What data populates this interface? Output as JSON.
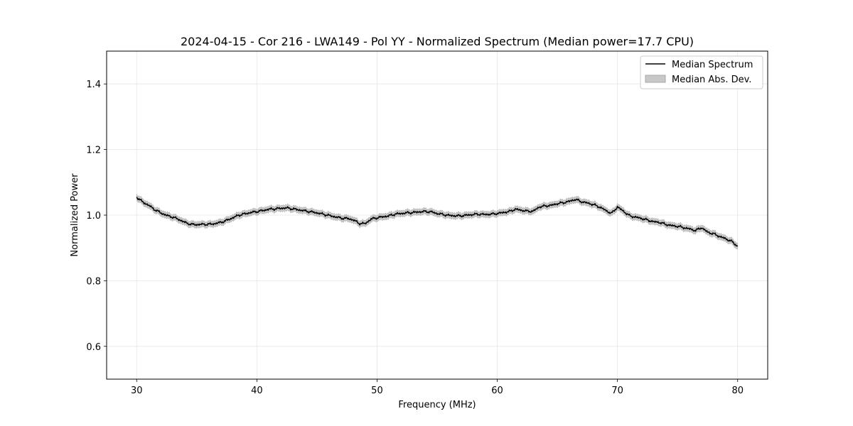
{
  "chart_data": {
    "type": "line",
    "title": "2024-04-15 - Cor 216 - LWA149 - Pol YY - Normalized Spectrum (Median power=17.7 CPU)",
    "xlabel": "Frequency (MHz)",
    "ylabel": "Normalized Power",
    "xlim": [
      27.5,
      82.5
    ],
    "ylim": [
      0.5,
      1.5
    ],
    "xticks": [
      30,
      40,
      50,
      60,
      70,
      80
    ],
    "yticks": [
      0.6,
      0.8,
      1.0,
      1.2,
      1.4
    ],
    "xtick_labels": [
      "30",
      "40",
      "50",
      "60",
      "70",
      "80"
    ],
    "ytick_labels": [
      "0.6",
      "0.8",
      "1.0",
      "1.2",
      "1.4"
    ],
    "grid": true,
    "legend_position": "top-right",
    "legend": [
      "Median Spectrum",
      "Median Abs. Dev."
    ],
    "series": [
      {
        "name": "Median Spectrum",
        "color": "#000000",
        "x": [
          30,
          30.5,
          31,
          31.5,
          32,
          32.5,
          33,
          33.5,
          34,
          34.5,
          35,
          35.5,
          36,
          36.5,
          37,
          37.5,
          38,
          38.5,
          39,
          39.5,
          40,
          40.5,
          41,
          41.5,
          42,
          42.5,
          43,
          43.5,
          44,
          44.5,
          45,
          45.5,
          46,
          46.5,
          47,
          47.5,
          48,
          48.5,
          49,
          49.5,
          50,
          50.5,
          51,
          51.5,
          52,
          52.5,
          53,
          53.5,
          54,
          54.5,
          55,
          55.5,
          56,
          56.5,
          57,
          57.5,
          58,
          58.5,
          59,
          59.5,
          60,
          60.5,
          61,
          61.5,
          62,
          62.5,
          63,
          63.5,
          64,
          64.5,
          65,
          65.5,
          66,
          66.5,
          67,
          67.5,
          68,
          68.5,
          69,
          69.5,
          70,
          70.5,
          71,
          71.5,
          72,
          72.5,
          73,
          73.5,
          74,
          74.5,
          75,
          75.5,
          76,
          76.5,
          77,
          77.5,
          78,
          78.5,
          79,
          79.5,
          80
        ],
        "y": [
          1.055,
          1.04,
          1.03,
          1.017,
          1.007,
          0.999,
          0.994,
          0.987,
          0.978,
          0.972,
          0.971,
          0.972,
          0.972,
          0.974,
          0.978,
          0.984,
          0.992,
          1.0,
          1.004,
          1.008,
          1.011,
          1.014,
          1.018,
          1.019,
          1.021,
          1.022,
          1.019,
          1.016,
          1.013,
          1.01,
          1.007,
          1.003,
          0.999,
          0.995,
          0.991,
          0.99,
          0.986,
          0.975,
          0.974,
          0.988,
          0.992,
          0.995,
          0.998,
          1.003,
          1.005,
          1.007,
          1.008,
          1.01,
          1.011,
          1.01,
          1.005,
          1.002,
          0.999,
          0.998,
          0.998,
          1.0,
          1.002,
          1.003,
          1.002,
          1.003,
          1.005,
          1.008,
          1.011,
          1.018,
          1.015,
          1.012,
          1.012,
          1.025,
          1.028,
          1.03,
          1.035,
          1.038,
          1.042,
          1.048,
          1.041,
          1.037,
          1.032,
          1.025,
          1.015,
          1.005,
          1.025,
          1.012,
          0.998,
          0.994,
          0.99,
          0.985,
          0.98,
          0.978,
          0.972,
          0.968,
          0.966,
          0.962,
          0.958,
          0.953,
          0.962,
          0.948,
          0.943,
          0.935,
          0.928,
          0.92,
          0.905
        ]
      },
      {
        "name": "Median Abs. Dev.",
        "type": "band",
        "color": "#c8c8c8",
        "half_width": 0.009
      }
    ]
  }
}
